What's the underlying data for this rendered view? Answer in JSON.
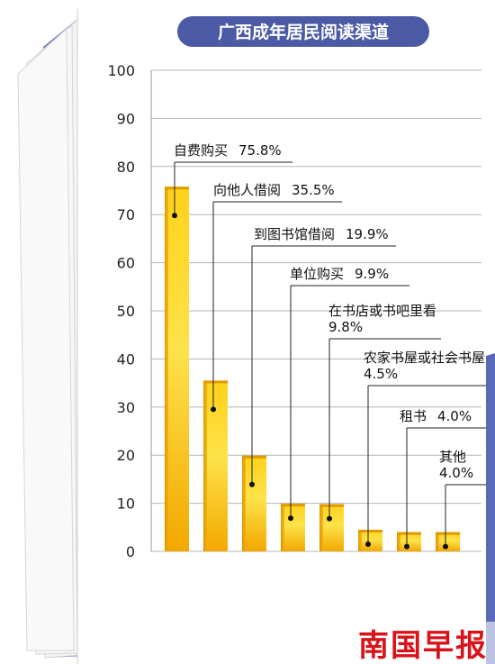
{
  "chart_data": {
    "type": "bar",
    "title": "广西成年居民阅读渠道",
    "categories": [
      "自费购买",
      "向他人借阅",
      "到图书馆借阅",
      "单位购买",
      "在书店或书吧里看",
      "农家书屋或社会书屋",
      "租书",
      "其他"
    ],
    "values": [
      75.8,
      35.5,
      19.9,
      9.9,
      9.8,
      4.5,
      4.0,
      4.0
    ],
    "value_labels": [
      "75.8%",
      "35.5%",
      "19.9%",
      "9.9%",
      "9.8%",
      "4.5%",
      "4.0%",
      "4.0%"
    ],
    "ylim": [
      0,
      100
    ],
    "yticks": [
      0,
      10,
      20,
      30,
      40,
      50,
      60,
      70,
      80,
      90,
      100
    ],
    "grid": true,
    "xlabel": "",
    "ylabel": ""
  },
  "watermark": "南国早报",
  "colors": {
    "bar_top": "#f6b400",
    "bar_mid": "#fbd832",
    "title_bg": "#4a5aa5",
    "grid": "#b0b0b0",
    "border": "#5a6ab8"
  }
}
